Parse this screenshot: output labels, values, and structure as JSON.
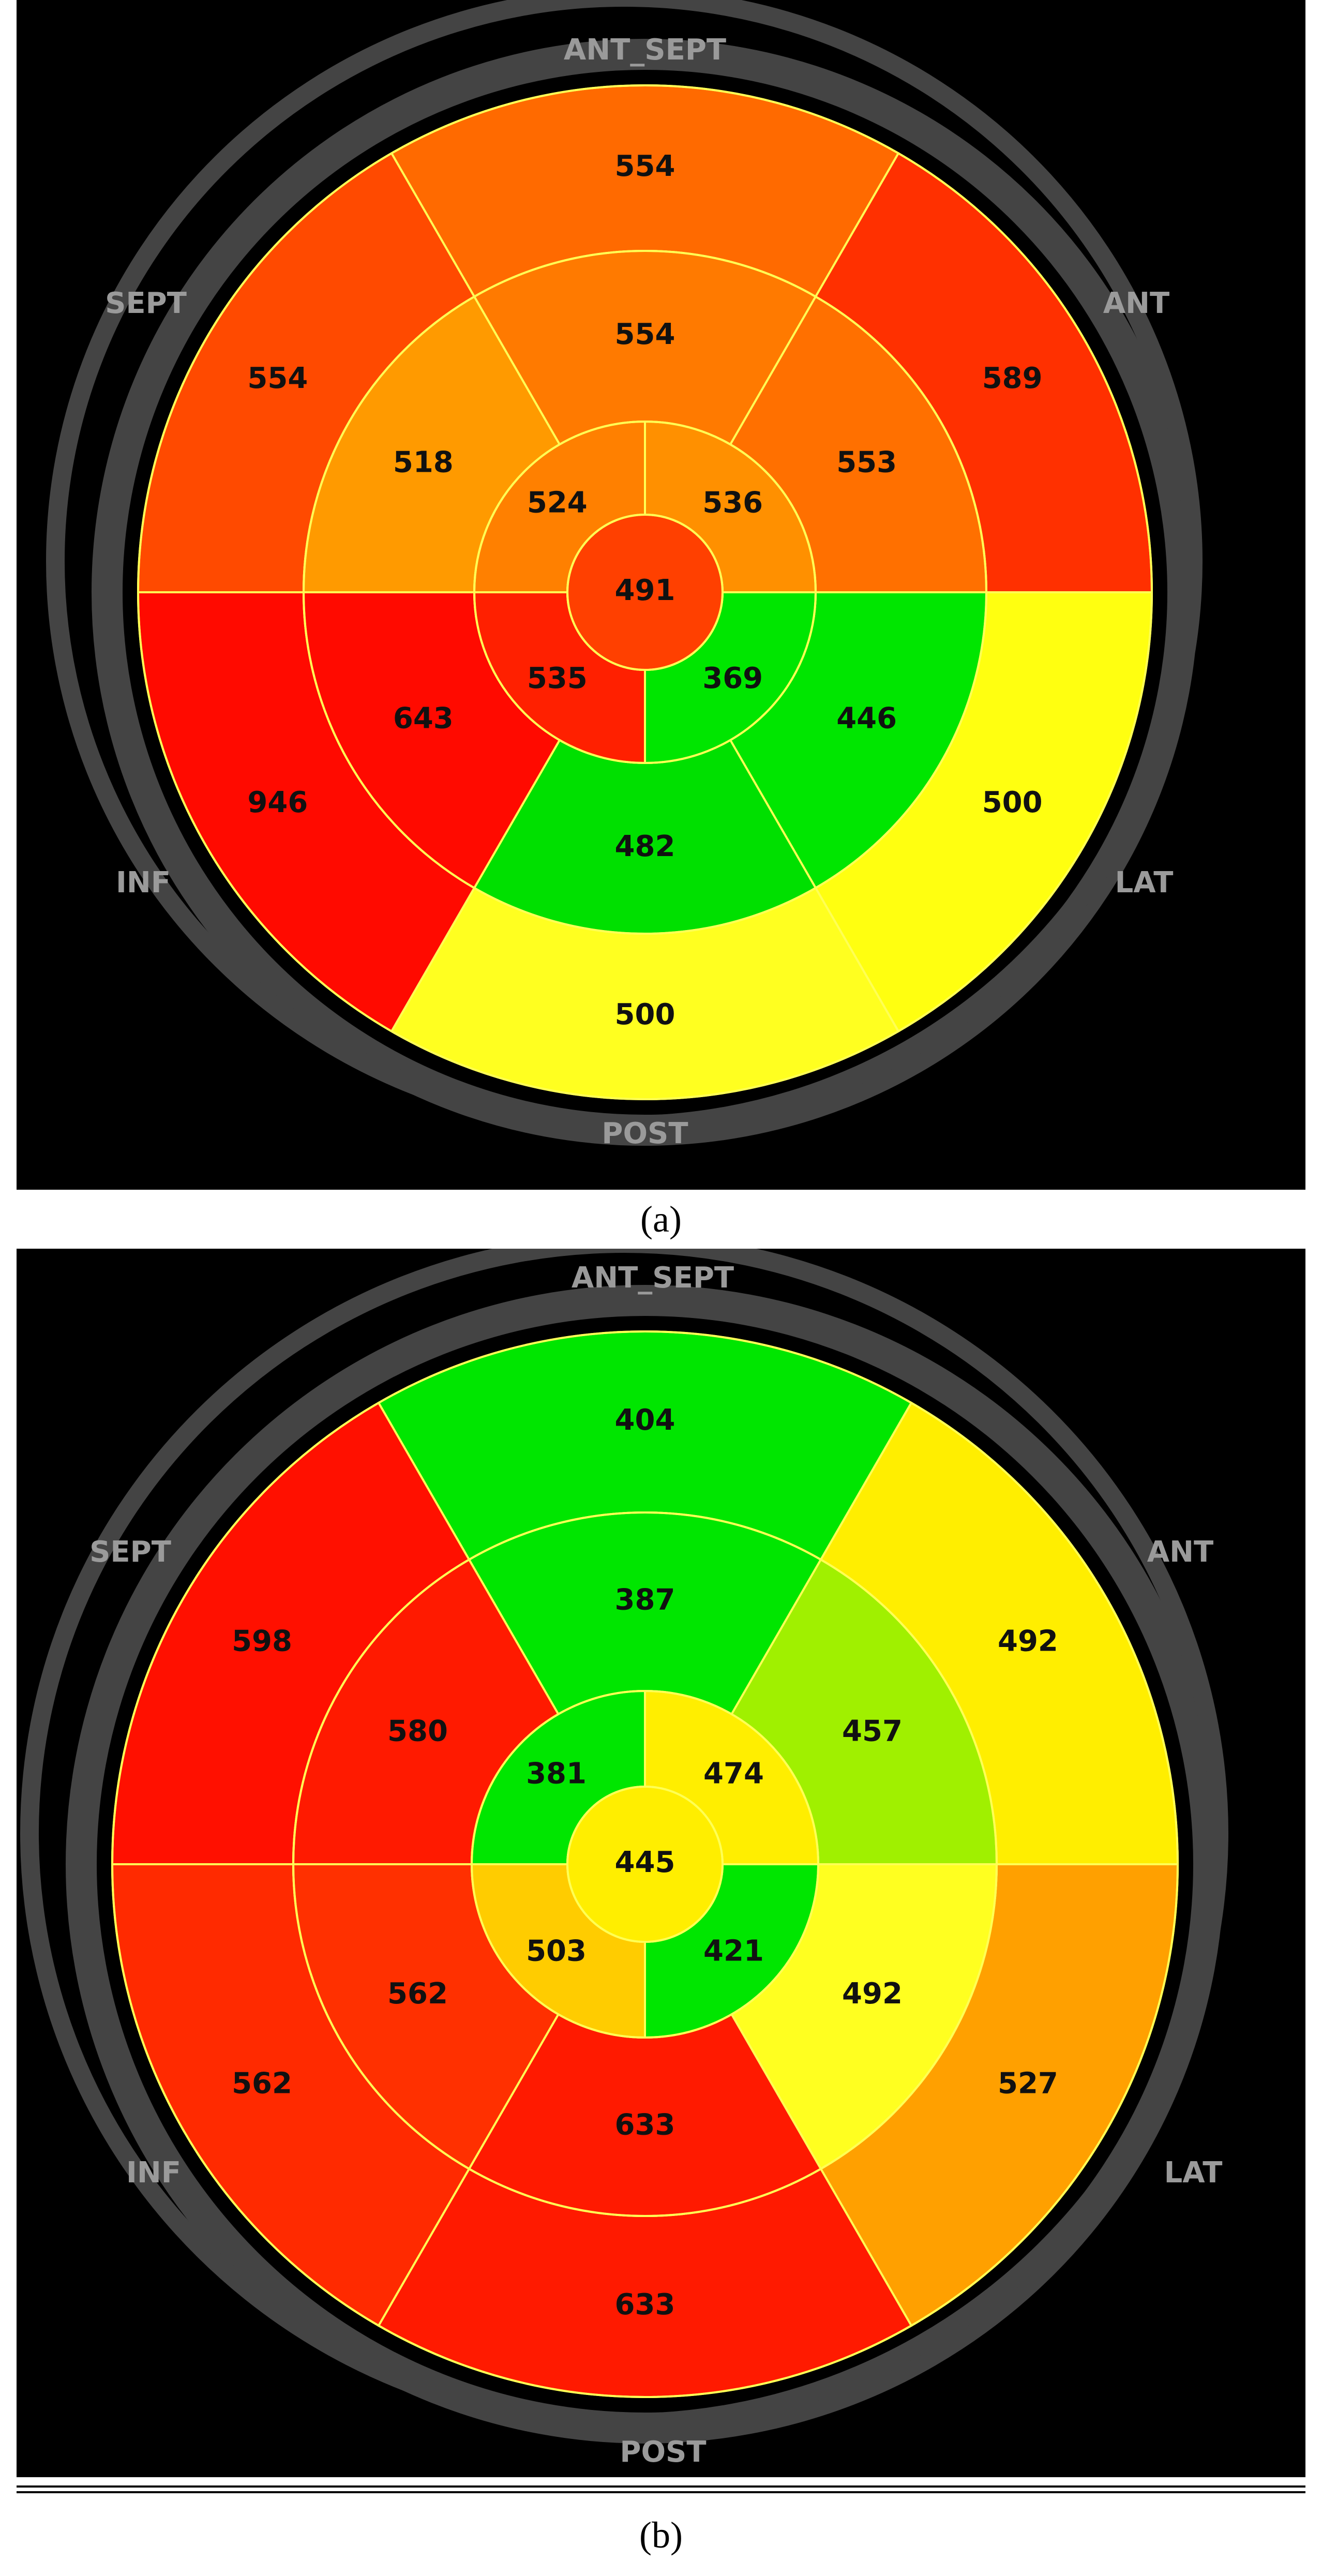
{
  "captions": {
    "a": "(a)",
    "b": "(b)"
  },
  "colors": {
    "red": "#ff1a00",
    "orange": "#ff7a00",
    "yellow": "#ffff00",
    "green": "#00e600",
    "grid": "#ffff55",
    "ring": "#444444",
    "label": "#9a9a9a"
  },
  "orientation_labels": [
    "ANT_SEPT",
    "ANT",
    "LAT",
    "POST",
    "INF",
    "SEPT"
  ],
  "panels": [
    {
      "id": "a",
      "segments": [
        {
          "seg": "basal-ant-sept",
          "value": "554",
          "color": "#ff6a00"
        },
        {
          "seg": "basal-ant",
          "value": "589",
          "color": "#ff3000"
        },
        {
          "seg": "basal-lat",
          "value": "500",
          "color": "#ffff10"
        },
        {
          "seg": "basal-post",
          "value": "500",
          "color": "#ffff20"
        },
        {
          "seg": "basal-inf",
          "value": "946",
          "color": "#ff0a00"
        },
        {
          "seg": "basal-sept",
          "value": "554",
          "color": "#ff4a00"
        },
        {
          "seg": "mid-ant-sept",
          "value": "554",
          "color": "#ff7a00"
        },
        {
          "seg": "mid-ant",
          "value": "553",
          "color": "#ff7000"
        },
        {
          "seg": "mid-lat",
          "value": "446",
          "color": "#00e600"
        },
        {
          "seg": "mid-post",
          "value": "482",
          "color": "#00e000"
        },
        {
          "seg": "mid-inf",
          "value": "643",
          "color": "#ff0a00"
        },
        {
          "seg": "mid-sept",
          "value": "518",
          "color": "#ff9a00"
        },
        {
          "seg": "apex-ant",
          "value": "524",
          "color": "#ff8000"
        },
        {
          "seg": "apex-lat",
          "value": "536",
          "color": "#ff9000"
        },
        {
          "seg": "apex-post",
          "value": "369",
          "color": "#00e600"
        },
        {
          "seg": "apex-sept",
          "value": "535",
          "color": "#ff2000"
        },
        {
          "seg": "apex-center",
          "value": "491",
          "color": "#ff4000"
        }
      ]
    },
    {
      "id": "b",
      "segments": [
        {
          "seg": "basal-ant-sept",
          "value": "404",
          "color": "#00e600"
        },
        {
          "seg": "basal-ant",
          "value": "492",
          "color": "#ffee00"
        },
        {
          "seg": "basal-lat",
          "value": "527",
          "color": "#ffa000"
        },
        {
          "seg": "basal-post",
          "value": "633",
          "color": "#ff1a00"
        },
        {
          "seg": "basal-inf",
          "value": "562",
          "color": "#ff2a00"
        },
        {
          "seg": "basal-sept",
          "value": "598",
          "color": "#ff1000"
        },
        {
          "seg": "mid-ant-sept",
          "value": "387",
          "color": "#00e600"
        },
        {
          "seg": "mid-ant",
          "value": "457",
          "color": "#a0f000"
        },
        {
          "seg": "mid-lat",
          "value": "492",
          "color": "#ffff20"
        },
        {
          "seg": "mid-post",
          "value": "633",
          "color": "#ff1a00"
        },
        {
          "seg": "mid-inf",
          "value": "562",
          "color": "#ff3000"
        },
        {
          "seg": "mid-sept",
          "value": "580",
          "color": "#ff1a00"
        },
        {
          "seg": "apex-ant",
          "value": "381",
          "color": "#00e600"
        },
        {
          "seg": "apex-lat",
          "value": "474",
          "color": "#ffee00"
        },
        {
          "seg": "apex-post",
          "value": "421",
          "color": "#00e600"
        },
        {
          "seg": "apex-sept",
          "value": "503",
          "color": "#ffcc00"
        },
        {
          "seg": "apex-center",
          "value": "445",
          "color": "#ffee00"
        }
      ]
    }
  ]
}
